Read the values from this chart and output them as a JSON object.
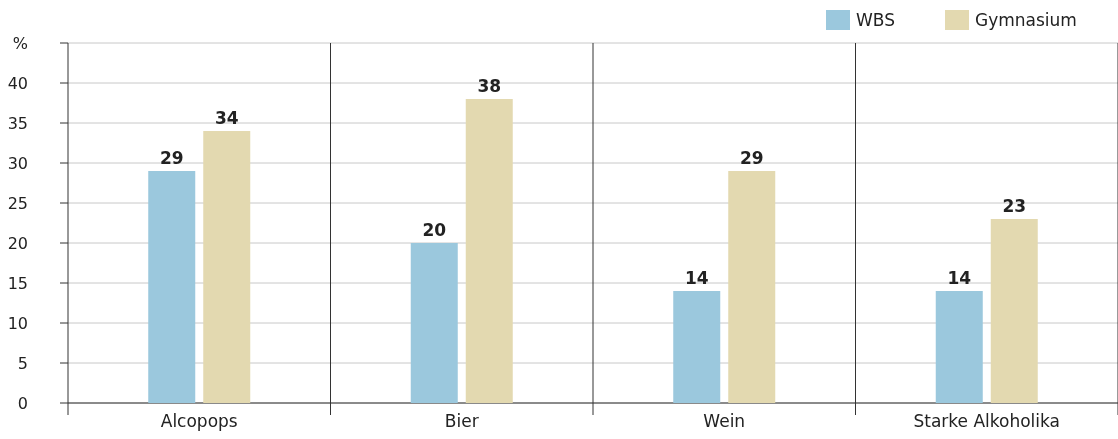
{
  "chart_data": {
    "type": "bar",
    "categories": [
      "Alcopops",
      "Bier",
      "Wein",
      "Starke Alkoholika"
    ],
    "series": [
      {
        "name": "WBS",
        "color": "#9bc8dd",
        "values": [
          29,
          20,
          14,
          14
        ]
      },
      {
        "name": "Gymnasium",
        "color": "#e3d9b0",
        "values": [
          34,
          38,
          29,
          23
        ]
      }
    ],
    "ylim": [
      0,
      45
    ],
    "yticks": [
      0,
      5,
      10,
      15,
      20,
      25,
      30,
      35,
      40,
      {
        "value": 45,
        "label": "%"
      }
    ],
    "grid": "y",
    "legend": "top right",
    "data_labels": true
  }
}
